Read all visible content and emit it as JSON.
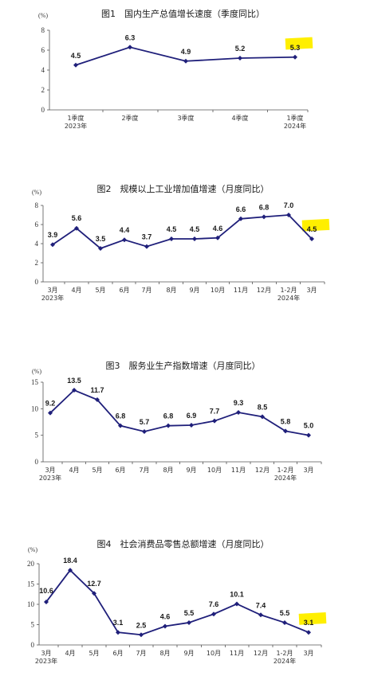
{
  "colors": {
    "line": "#1f1f7a",
    "highlight": "#ffef00",
    "axis": "#555555"
  },
  "chart_data": [
    {
      "type": "line",
      "title": "图1　国内生产总值增长速度（季度同比）",
      "unit": "(%)",
      "ylim": [
        0,
        8
      ],
      "yticks": [
        0,
        2,
        4,
        6,
        8
      ],
      "categories": [
        "1季度",
        "2季度",
        "3季度",
        "4季度",
        "1季度"
      ],
      "sublabels": [
        "2023年",
        "",
        "",
        "",
        "2024年"
      ],
      "values": [
        4.5,
        6.3,
        4.9,
        5.2,
        5.3
      ],
      "labels": [
        "4.5",
        "6.3",
        "4.9",
        "5.2",
        "5.3"
      ],
      "highlight_index": 4
    },
    {
      "type": "line",
      "title": "图2　规模以上工业增加值增速（月度同比）",
      "unit": "(%)",
      "ylim": [
        0,
        8
      ],
      "yticks": [
        0,
        2,
        4,
        6,
        8
      ],
      "categories": [
        "3月",
        "4月",
        "5月",
        "6月",
        "7月",
        "8月",
        "9月",
        "10月",
        "11月",
        "12月",
        "1-2月",
        "3月"
      ],
      "sublabels": [
        "2023年",
        "",
        "",
        "",
        "",
        "",
        "",
        "",
        "",
        "",
        "2024年",
        ""
      ],
      "values": [
        3.9,
        5.6,
        3.5,
        4.4,
        3.7,
        4.5,
        4.5,
        4.6,
        6.6,
        6.8,
        7.0,
        4.5
      ],
      "labels": [
        "3.9",
        "5.6",
        "3.5",
        "4.4",
        "3.7",
        "4.5",
        "4.5",
        "4.6",
        "6.6",
        "6.8",
        "7.0",
        "4.5"
      ],
      "highlight_index": 11
    },
    {
      "type": "line",
      "title": "图3　服务业生产指数增速（月度同比）",
      "unit": "(%)",
      "ylim": [
        0,
        15
      ],
      "yticks": [
        0,
        5,
        10,
        15
      ],
      "categories": [
        "3月",
        "4月",
        "5月",
        "6月",
        "7月",
        "8月",
        "9月",
        "10月",
        "11月",
        "12月",
        "1-2月",
        "3月"
      ],
      "sublabels": [
        "2023年",
        "",
        "",
        "",
        "",
        "",
        "",
        "",
        "",
        "",
        "2024年",
        ""
      ],
      "values": [
        9.2,
        13.5,
        11.7,
        6.8,
        5.7,
        6.8,
        6.9,
        7.7,
        9.3,
        8.5,
        5.8,
        5.0
      ],
      "labels": [
        "9.2",
        "13.5",
        "11.7",
        "6.8",
        "5.7",
        "6.8",
        "6.9",
        "7.7",
        "9.3",
        "8.5",
        "5.8",
        "5.0"
      ],
      "highlight_index": null
    },
    {
      "type": "line",
      "title": "图4　社会消费品零售总额增速（月度同比）",
      "unit": "(%)",
      "ylim": [
        0,
        20
      ],
      "yticks": [
        0,
        5,
        10,
        15,
        20
      ],
      "categories": [
        "3月",
        "4月",
        "5月",
        "6月",
        "7月",
        "8月",
        "9月",
        "10月",
        "11月",
        "12月",
        "1-2月",
        "3月"
      ],
      "sublabels": [
        "2023年",
        "",
        "",
        "",
        "",
        "",
        "",
        "",
        "",
        "",
        "2024年",
        ""
      ],
      "values": [
        10.6,
        18.4,
        12.7,
        3.1,
        2.5,
        4.6,
        5.5,
        7.6,
        10.1,
        7.4,
        5.5,
        3.1
      ],
      "labels": [
        "10.6",
        "18.4",
        "12.7",
        "3.1",
        "2.5",
        "4.6",
        "5.5",
        "7.6",
        "10.1",
        "7.4",
        "5.5",
        "3.1"
      ],
      "highlight_index": 11
    }
  ]
}
